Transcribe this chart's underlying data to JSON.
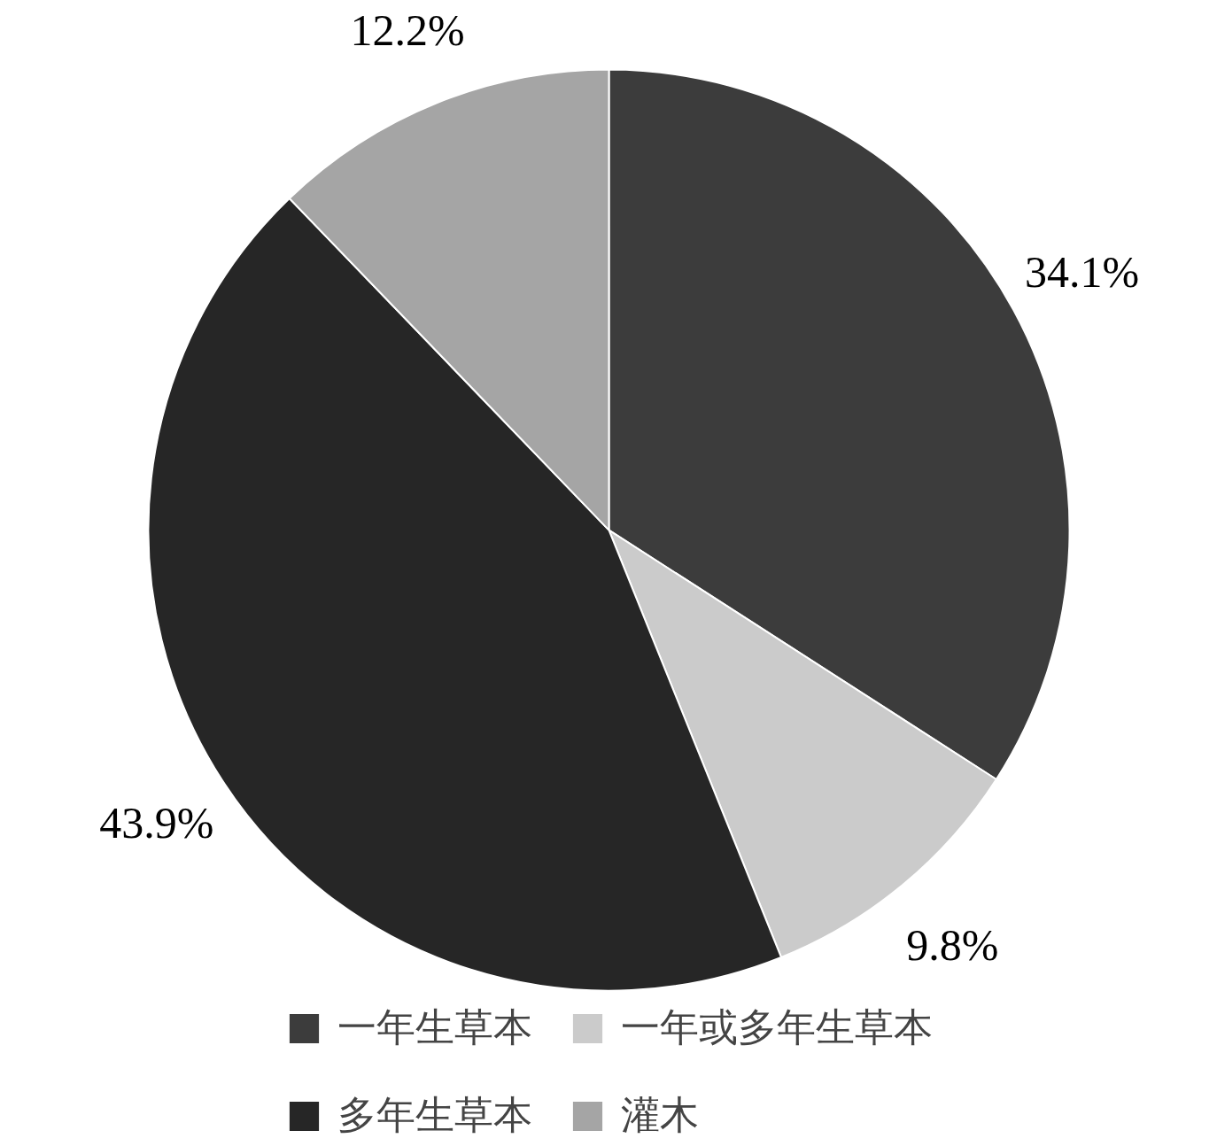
{
  "chart_data": {
    "type": "pie",
    "categories": [
      "一年生草本",
      "一年或多年生草本",
      "多年生草本",
      "灌木"
    ],
    "values": [
      34.1,
      9.8,
      43.9,
      12.2
    ],
    "colors": [
      "#3c3c3c",
      "#cbcbcb",
      "#262626",
      "#a5a5a5"
    ],
    "value_labels": [
      "34.1%",
      "9.8%",
      "43.9%",
      "12.2%"
    ],
    "legend": "bottom"
  }
}
